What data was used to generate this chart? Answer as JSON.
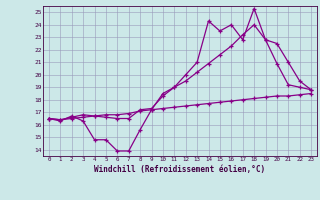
{
  "title": "",
  "xlabel": "Windchill (Refroidissement éolien,°C)",
  "ylabel": "",
  "xlim": [
    -0.5,
    23.5
  ],
  "ylim": [
    13.5,
    25.5
  ],
  "background_color": "#cce8e8",
  "grid_color": "#9999bb",
  "line_color": "#880088",
  "line1_x": [
    0,
    1,
    2,
    3,
    4,
    5,
    6,
    7,
    8,
    9,
    10,
    11,
    12,
    13,
    14,
    15,
    16,
    17,
    18,
    19,
    20,
    21,
    22,
    23
  ],
  "line1_y": [
    16.5,
    16.3,
    16.7,
    16.3,
    14.8,
    14.8,
    13.9,
    13.9,
    15.6,
    17.2,
    18.5,
    19.0,
    20.0,
    21.0,
    24.3,
    23.5,
    24.0,
    22.8,
    25.3,
    22.8,
    20.9,
    19.2,
    19.0,
    18.8
  ],
  "line2_x": [
    0,
    1,
    2,
    3,
    4,
    5,
    6,
    7,
    8,
    9,
    10,
    11,
    12,
    13,
    14,
    15,
    16,
    17,
    18,
    19,
    20,
    21,
    22,
    23
  ],
  "line2_y": [
    16.5,
    16.4,
    16.6,
    16.8,
    16.7,
    16.6,
    16.5,
    16.5,
    17.2,
    17.3,
    18.3,
    19.0,
    19.5,
    20.2,
    20.9,
    21.6,
    22.3,
    23.2,
    24.0,
    22.8,
    22.5,
    21.0,
    19.5,
    18.8
  ],
  "line3_x": [
    0,
    1,
    2,
    3,
    4,
    5,
    6,
    7,
    8,
    9,
    10,
    11,
    12,
    13,
    14,
    15,
    16,
    17,
    18,
    19,
    20,
    21,
    22,
    23
  ],
  "line3_y": [
    16.5,
    16.4,
    16.5,
    16.6,
    16.7,
    16.8,
    16.8,
    16.9,
    17.1,
    17.2,
    17.3,
    17.4,
    17.5,
    17.6,
    17.7,
    17.8,
    17.9,
    18.0,
    18.1,
    18.2,
    18.3,
    18.3,
    18.4,
    18.5
  ],
  "xticks": [
    0,
    1,
    2,
    3,
    4,
    5,
    6,
    7,
    8,
    9,
    10,
    11,
    12,
    13,
    14,
    15,
    16,
    17,
    18,
    19,
    20,
    21,
    22,
    23
  ],
  "yticks": [
    14,
    15,
    16,
    17,
    18,
    19,
    20,
    21,
    22,
    23,
    24,
    25
  ]
}
